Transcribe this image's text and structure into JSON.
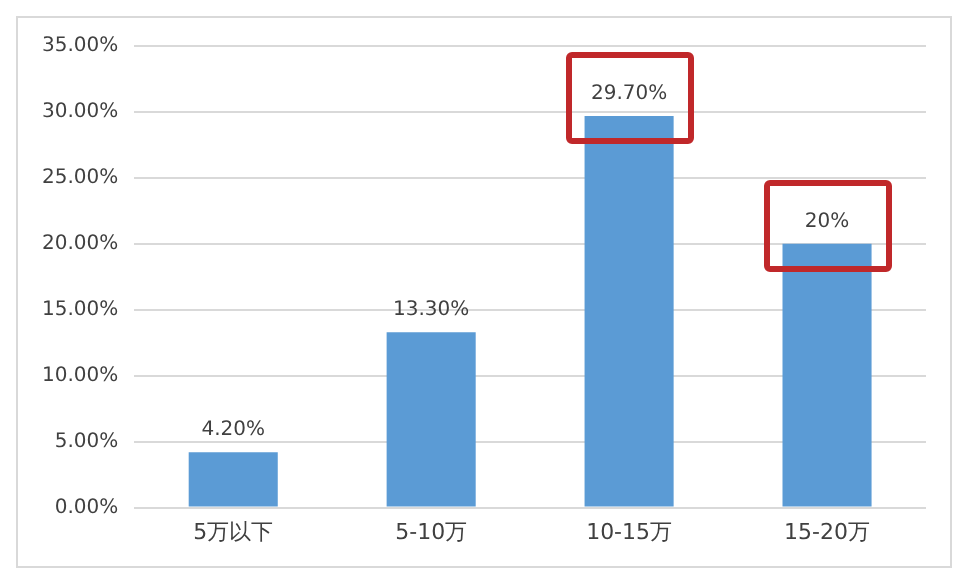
{
  "chart_data": {
    "type": "bar",
    "categories": [
      "5万以下",
      "5-10万",
      "10-15万",
      "15-20万"
    ],
    "values": [
      4.2,
      13.3,
      29.7,
      20
    ],
    "color": "#5b9bd5",
    "value_labels": [
      "4.20%",
      "13.30%",
      "29.70%",
      "20%"
    ],
    "ylim": [
      0,
      35
    ],
    "yticks": [
      {
        "value": 0,
        "label": "0.00%"
      },
      {
        "value": 5,
        "label": "5.00%"
      },
      {
        "value": 10,
        "label": "10.00%"
      },
      {
        "value": 15,
        "label": "15.00%"
      },
      {
        "value": 20,
        "label": "20.00%"
      },
      {
        "value": 25,
        "label": "25.00%"
      },
      {
        "value": 30,
        "label": "30.00%"
      },
      {
        "value": 35,
        "label": "35.00%"
      }
    ],
    "grid": "y"
  }
}
